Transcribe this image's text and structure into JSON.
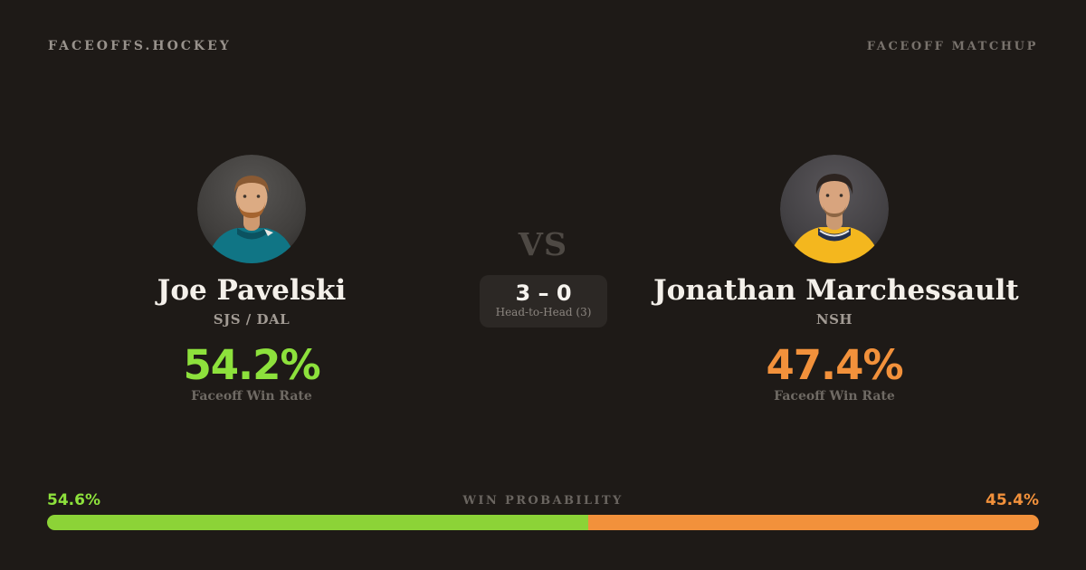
{
  "header": {
    "brand": "FACEOFFS.HOCKEY",
    "page_label": "FACEOFF MATCHUP"
  },
  "matchup": {
    "left": {
      "name": "Joe Pavelski",
      "team": "SJS / DAL",
      "faceoff_win_rate": "54.2%",
      "stat_label": "Faceoff Win Rate",
      "accent_color": "#8de13c",
      "jersey_color": "#107585",
      "avatar_icon": "joe-pavelski-headshot"
    },
    "right": {
      "name": "Jonathan Marchessault",
      "team": "NSH",
      "faceoff_win_rate": "47.4%",
      "stat_label": "Faceoff Win Rate",
      "accent_color": "#f2913b",
      "jersey_color": "#f4b71e",
      "avatar_icon": "jonathan-marchessault-headshot"
    },
    "versus_label": "VS",
    "head_to_head": {
      "score": "3 – 0",
      "label": "Head-to-Head (3)"
    }
  },
  "win_probability": {
    "label": "WIN PROBABILITY",
    "left_value": "54.6%",
    "right_value": "45.4%",
    "left_pct": 54.6,
    "right_pct": 45.4,
    "left_bar_color": "#8cd337",
    "right_bar_color": "#f2913b"
  }
}
